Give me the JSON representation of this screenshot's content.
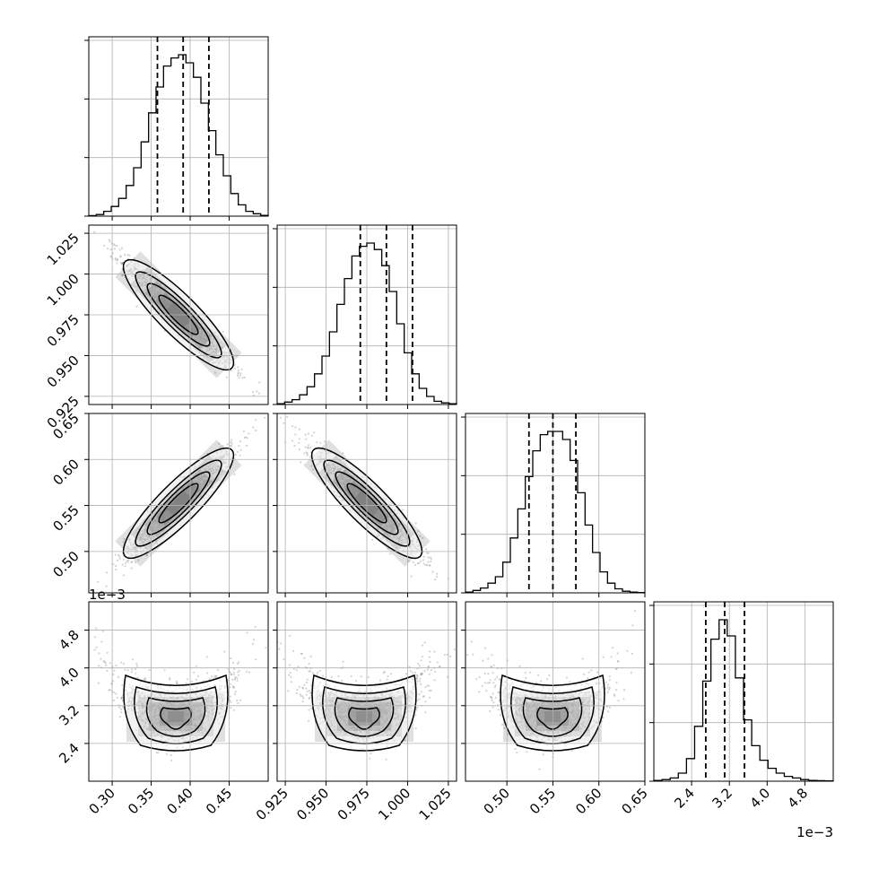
{
  "chart_data": {
    "type": "corner",
    "description_type": "scatter",
    "grid": true,
    "colors": {
      "hist": "#000000",
      "scatter": "#808080",
      "contour": "#000000",
      "grid": "#b0b0b0"
    },
    "parameters": [
      {
        "range": [
          0.27,
          0.5
        ],
        "ticks": [
          0.3,
          0.35,
          0.4,
          0.45
        ],
        "tick_labels": [
          "0.30",
          "0.35",
          "0.40",
          "0.45"
        ],
        "multiplier_label": "",
        "quantiles": [
          0.358,
          0.391,
          0.424
        ],
        "hist_heights": [
          0.3,
          1,
          3,
          6,
          11,
          19,
          30,
          46,
          64,
          80,
          93,
          98,
          100,
          95,
          86,
          70,
          53,
          38,
          25,
          14,
          7,
          3,
          1.5,
          0.5
        ]
      },
      {
        "range": [
          0.92,
          1.03
        ],
        "ticks": [
          0.925,
          0.95,
          0.975,
          1.0,
          1.025
        ],
        "tick_labels": [
          "0.925",
          "0.950",
          "0.975",
          "1.000",
          "1.025"
        ],
        "multiplier_label": "",
        "quantiles": [
          0.971,
          0.987,
          1.003
        ],
        "hist_heights": [
          0.5,
          1.5,
          3,
          6,
          11,
          19,
          30,
          45,
          62,
          78,
          92,
          98,
          100,
          96,
          86,
          70,
          50,
          32,
          19,
          10,
          5,
          2,
          1,
          0.5
        ]
      },
      {
        "range": [
          0.455,
          0.65
        ],
        "ticks": [
          0.5,
          0.55,
          0.6,
          0.65
        ],
        "tick_labels": [
          "0.50",
          "0.55",
          "0.60",
          "0.65"
        ],
        "multiplier_label": "",
        "quantiles": [
          0.524,
          0.55,
          0.575
        ],
        "hist_heights": [
          0.5,
          1.5,
          3,
          6,
          10,
          19,
          34,
          52,
          72,
          88,
          98,
          100,
          100,
          95,
          82,
          62,
          42,
          25,
          13,
          6,
          2.5,
          1,
          0.5,
          0.2
        ]
      },
      {
        "range": [
          1.6,
          5.4
        ],
        "ticks": [
          2.4,
          3.2,
          4.0,
          4.8
        ],
        "tick_labels": [
          "2.4",
          "3.2",
          "4.0",
          "4.8"
        ],
        "multiplier_label": "1e−3",
        "quantiles": [
          2.7,
          3.1,
          3.52
        ],
        "hist_heights": [
          0.5,
          1,
          2,
          5,
          14,
          34,
          62,
          88,
          100,
          90,
          64,
          38,
          22,
          13,
          8,
          5,
          3,
          2,
          1,
          0.5,
          0.3,
          0.2
        ]
      }
    ],
    "correlations": [
      {
        "row": 1,
        "col": 0,
        "rho": -0.96,
        "banana": false
      },
      {
        "row": 2,
        "col": 0,
        "rho": 0.95,
        "banana": false
      },
      {
        "row": 2,
        "col": 1,
        "rho": -0.94,
        "banana": false
      },
      {
        "row": 3,
        "col": 0,
        "rho": 0.0,
        "banana": true
      },
      {
        "row": 3,
        "col": 1,
        "rho": 0.0,
        "banana": true
      },
      {
        "row": 3,
        "col": 2,
        "rho": 0.0,
        "banana": true
      }
    ]
  }
}
